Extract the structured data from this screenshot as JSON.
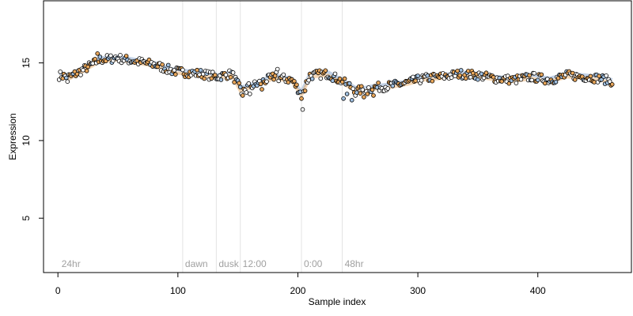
{
  "chart_data": {
    "type": "scatter",
    "title": "",
    "xlabel": "Sample index",
    "ylabel": "Expression",
    "xlim": [
      -12,
      478
    ],
    "ylim": [
      1.5,
      19
    ],
    "x_ticks": [
      0,
      100,
      200,
      300,
      400
    ],
    "y_ticks": [
      5,
      10,
      15
    ],
    "grid": false,
    "legend": "none",
    "event_lines": [
      {
        "x": 1,
        "label": "24hr",
        "line": false
      },
      {
        "x": 104,
        "label": "dawn",
        "line": true
      },
      {
        "x": 132,
        "label": "dusk",
        "line": true
      },
      {
        "x": 152,
        "label": "12:00",
        "line": true
      },
      {
        "x": 203,
        "label": "0:00",
        "line": true
      },
      {
        "x": 237,
        "label": "48hr",
        "line": true
      }
    ],
    "anchors": [
      [
        1,
        14.2
      ],
      [
        10,
        14.1
      ],
      [
        22,
        14.6
      ],
      [
        35,
        15.2
      ],
      [
        50,
        15.3
      ],
      [
        65,
        15.1
      ],
      [
        80,
        14.9
      ],
      [
        95,
        14.5
      ],
      [
        104,
        14.4
      ],
      [
        120,
        14.3
      ],
      [
        132,
        14.1
      ],
      [
        145,
        14.3
      ],
      [
        152,
        13.3
      ],
      [
        165,
        13.6
      ],
      [
        180,
        14.1
      ],
      [
        195,
        13.9
      ],
      [
        203,
        13.0
      ],
      [
        210,
        14.2
      ],
      [
        225,
        14.3
      ],
      [
        237,
        13.8
      ],
      [
        250,
        13.2
      ],
      [
        262,
        13.4
      ],
      [
        275,
        13.5
      ],
      [
        290,
        13.7
      ],
      [
        305,
        14.0
      ],
      [
        320,
        14.1
      ],
      [
        335,
        14.3
      ],
      [
        350,
        14.2
      ],
      [
        365,
        14.0
      ],
      [
        380,
        13.9
      ],
      [
        395,
        14.1
      ],
      [
        410,
        13.9
      ],
      [
        425,
        14.2
      ],
      [
        440,
        14.1
      ],
      [
        452,
        14.0
      ],
      [
        462,
        13.8
      ]
    ],
    "noise_amp": 0.28,
    "dips": [
      [
        153,
        13.0
      ],
      [
        154,
        12.9
      ],
      [
        157,
        13.1
      ],
      [
        160,
        13.0
      ],
      [
        203,
        12.7
      ],
      [
        204,
        12.0
      ],
      [
        206,
        13.2
      ],
      [
        238,
        12.7
      ],
      [
        241,
        13.0
      ],
      [
        245,
        12.6
      ],
      [
        248,
        12.9
      ],
      [
        255,
        12.8
      ],
      [
        258,
        13.0
      ],
      [
        263,
        12.9
      ],
      [
        8,
        13.8
      ],
      [
        182,
        14.4
      ],
      [
        183,
        14.6
      ],
      [
        33,
        15.6
      ],
      [
        48,
        15.4
      ],
      [
        170,
        13.3
      ]
    ],
    "series": [
      {
        "x_start": 1,
        "x_end": 462,
        "kind": "samples",
        "fill_colors": [
          "#e8a65a",
          "#ffffff",
          "#9fbfe0",
          "#ffffff",
          "#e8a65a"
        ],
        "stroke_color": "#000000"
      }
    ],
    "fit_colors": [
      "#7b9cc8",
      "#e8a65a"
    ]
  }
}
